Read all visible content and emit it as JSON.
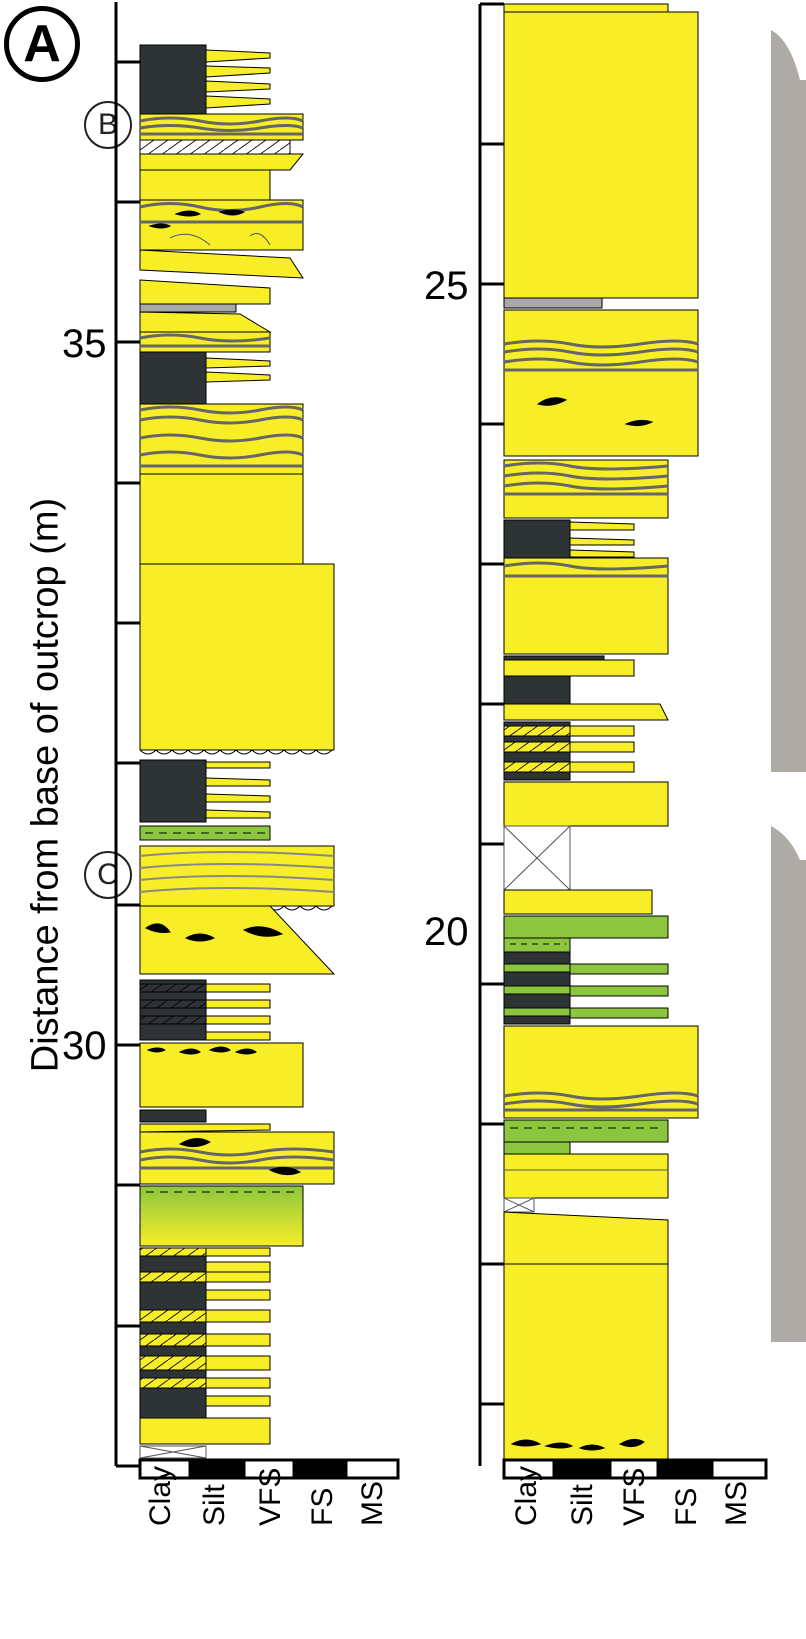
{
  "panel_label": "A",
  "section_labels": {
    "upper": "B",
    "lower": "C"
  },
  "axis_title": "Distance from base of outcrop (m)",
  "left_column": {
    "depth_labels": [
      "35",
      "30"
    ]
  },
  "right_column": {
    "depth_labels": [
      "25",
      "20"
    ]
  },
  "grain_size_scale": [
    "Clay",
    "Silt",
    "VFS",
    "FS",
    "MS"
  ],
  "colors": {
    "sandstone": "#f7ee27",
    "mudstone": "#2e3436",
    "heterolithic_drape": "#a9a9a9",
    "green_unit": "#8cc63f",
    "outline": "#000000"
  }
}
